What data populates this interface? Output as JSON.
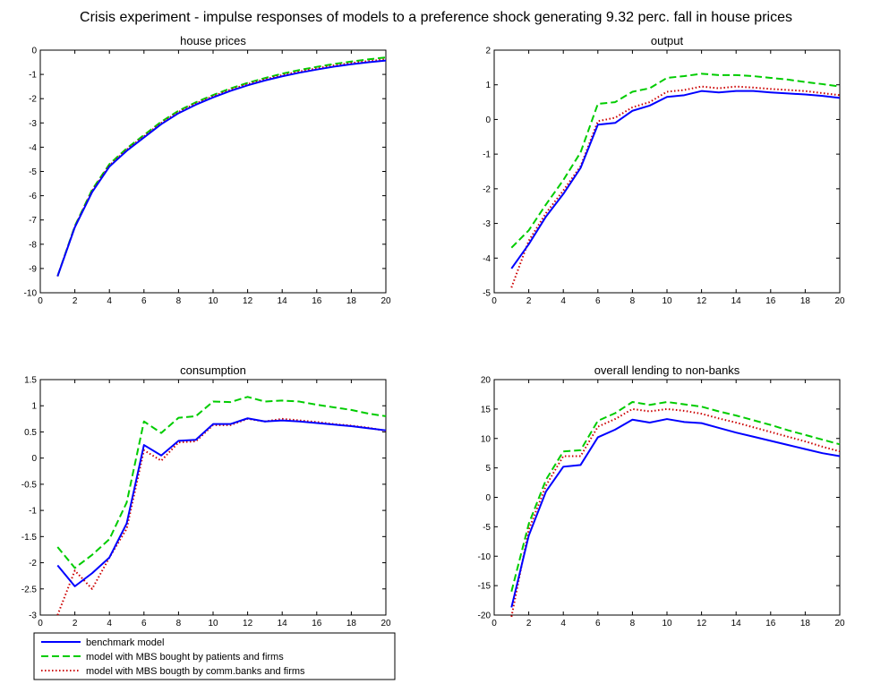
{
  "figure": {
    "title": "Crisis experiment - impulse responses of models to a preference shock generating 9.32 perc. fall in house prices"
  },
  "legend": {
    "placement": "below-bottom-left",
    "entries": [
      {
        "label": "benchmark model",
        "color": "#0000ff",
        "style": "solid"
      },
      {
        "label": "model with MBS bought by patients and firms",
        "color": "#00cc00",
        "style": "dashed"
      },
      {
        "label": "model with MBS bougth by comm.banks and firms",
        "color": "#cc0000",
        "style": "dotted"
      }
    ]
  },
  "chart_data": [
    {
      "type": "line",
      "title": "house prices",
      "xlabel": "",
      "ylabel": "",
      "xlim": [
        0,
        20
      ],
      "ylim": [
        -10,
        0
      ],
      "xticks": [
        0,
        2,
        4,
        6,
        8,
        10,
        12,
        14,
        16,
        18,
        20
      ],
      "yticks": [
        -10,
        -9,
        -8,
        -7,
        -6,
        -5,
        -4,
        -3,
        -2,
        -1,
        0
      ],
      "x": [
        1,
        2,
        3,
        4,
        5,
        6,
        7,
        8,
        9,
        10,
        11,
        12,
        13,
        14,
        15,
        16,
        17,
        18,
        19,
        20
      ],
      "series": [
        {
          "name": "benchmark model",
          "values": [
            -9.32,
            -7.3,
            -5.85,
            -4.8,
            -4.15,
            -3.6,
            -3.05,
            -2.6,
            -2.25,
            -1.95,
            -1.68,
            -1.45,
            -1.25,
            -1.08,
            -0.93,
            -0.8,
            -0.68,
            -0.58,
            -0.5,
            -0.43
          ]
        },
        {
          "name": "model with MBS bought by patients and firms",
          "values": [
            -9.32,
            -7.25,
            -5.75,
            -4.7,
            -4.05,
            -3.5,
            -2.95,
            -2.5,
            -2.15,
            -1.85,
            -1.58,
            -1.35,
            -1.15,
            -0.97,
            -0.82,
            -0.69,
            -0.57,
            -0.47,
            -0.38,
            -0.3
          ]
        },
        {
          "name": "model with MBS bougth by comm.banks and firms",
          "values": [
            -9.32,
            -7.28,
            -5.8,
            -4.75,
            -4.1,
            -3.55,
            -3.0,
            -2.55,
            -2.2,
            -1.9,
            -1.63,
            -1.4,
            -1.2,
            -1.03,
            -0.88,
            -0.75,
            -0.63,
            -0.53,
            -0.45,
            -0.38
          ]
        }
      ]
    },
    {
      "type": "line",
      "title": "output",
      "xlabel": "",
      "ylabel": "",
      "xlim": [
        0,
        20
      ],
      "ylim": [
        -5,
        2
      ],
      "xticks": [
        0,
        2,
        4,
        6,
        8,
        10,
        12,
        14,
        16,
        18,
        20
      ],
      "yticks": [
        -5,
        -4,
        -3,
        -2,
        -1,
        0,
        1,
        2
      ],
      "x": [
        1,
        2,
        3,
        4,
        5,
        6,
        7,
        8,
        9,
        10,
        11,
        12,
        13,
        14,
        15,
        16,
        17,
        18,
        19,
        20
      ],
      "series": [
        {
          "name": "benchmark model",
          "values": [
            -4.3,
            -3.6,
            -2.8,
            -2.15,
            -1.4,
            -0.15,
            -0.1,
            0.25,
            0.4,
            0.65,
            0.7,
            0.82,
            0.78,
            0.82,
            0.82,
            0.78,
            0.75,
            0.72,
            0.68,
            0.62
          ]
        },
        {
          "name": "model with MBS bought by patients and firms",
          "values": [
            -3.7,
            -3.2,
            -2.45,
            -1.75,
            -0.95,
            0.45,
            0.5,
            0.8,
            0.9,
            1.2,
            1.25,
            1.32,
            1.28,
            1.28,
            1.25,
            1.2,
            1.15,
            1.08,
            1.02,
            0.95
          ]
        },
        {
          "name": "model with MBS bougth by comm.banks and firms",
          "values": [
            -4.85,
            -3.5,
            -2.7,
            -2.05,
            -1.35,
            -0.05,
            0.05,
            0.35,
            0.5,
            0.8,
            0.85,
            0.95,
            0.9,
            0.95,
            0.92,
            0.88,
            0.85,
            0.82,
            0.76,
            0.7
          ]
        }
      ]
    },
    {
      "type": "line",
      "title": "consumption",
      "xlabel": "",
      "ylabel": "",
      "xlim": [
        0,
        20
      ],
      "ylim": [
        -3,
        1.5
      ],
      "xticks": [
        0,
        2,
        4,
        6,
        8,
        10,
        12,
        14,
        16,
        18,
        20
      ],
      "yticks": [
        -3,
        -2.5,
        -2,
        -1.5,
        -1,
        -0.5,
        0,
        0.5,
        1,
        1.5
      ],
      "x": [
        1,
        2,
        3,
        4,
        5,
        6,
        7,
        8,
        9,
        10,
        11,
        12,
        13,
        14,
        15,
        16,
        17,
        18,
        19,
        20
      ],
      "series": [
        {
          "name": "benchmark model",
          "values": [
            -2.05,
            -2.45,
            -2.2,
            -1.9,
            -1.25,
            0.25,
            0.05,
            0.33,
            0.35,
            0.65,
            0.65,
            0.76,
            0.7,
            0.72,
            0.7,
            0.67,
            0.64,
            0.61,
            0.57,
            0.53
          ]
        },
        {
          "name": "model with MBS bought by patients and firms",
          "values": [
            -1.7,
            -2.1,
            -1.85,
            -1.55,
            -0.85,
            0.7,
            0.48,
            0.77,
            0.8,
            1.08,
            1.07,
            1.17,
            1.08,
            1.1,
            1.08,
            1.02,
            0.97,
            0.92,
            0.85,
            0.8
          ]
        },
        {
          "name": "model with MBS bougth by comm.banks and firms",
          "values": [
            -3.0,
            -2.15,
            -2.5,
            -1.9,
            -1.35,
            0.15,
            -0.05,
            0.3,
            0.32,
            0.63,
            0.63,
            0.75,
            0.7,
            0.75,
            0.72,
            0.69,
            0.65,
            0.62,
            0.58,
            0.52
          ]
        }
      ]
    },
    {
      "type": "line",
      "title": "overall lending to non-banks",
      "xlabel": "",
      "ylabel": "",
      "xlim": [
        0,
        20
      ],
      "ylim": [
        -20,
        20
      ],
      "ylim_note": "",
      "xticks": [
        0,
        2,
        4,
        6,
        8,
        10,
        12,
        14,
        16,
        18,
        20
      ],
      "yticks": [
        -20,
        -15,
        -10,
        -5,
        0,
        5,
        10,
        15,
        20
      ],
      "x": [
        1,
        2,
        3,
        4,
        5,
        6,
        7,
        8,
        9,
        10,
        11,
        12,
        13,
        14,
        15,
        16,
        17,
        18,
        19,
        20
      ],
      "series": [
        {
          "name": "benchmark model",
          "values": [
            -18.7,
            -6.5,
            1.0,
            5.2,
            5.5,
            10.2,
            11.5,
            13.2,
            12.7,
            13.3,
            12.8,
            12.6,
            11.8,
            11.0,
            10.3,
            9.6,
            8.9,
            8.2,
            7.5,
            7.0
          ]
        },
        {
          "name": "model with MBS bought by patients and firms",
          "values": [
            -16.0,
            -4.5,
            3.0,
            7.8,
            8.0,
            13.0,
            14.3,
            16.2,
            15.7,
            16.2,
            15.8,
            15.4,
            14.6,
            13.9,
            13.1,
            12.3,
            11.4,
            10.6,
            9.8,
            9.0
          ]
        },
        {
          "name": "model with MBS bougth by comm.banks and firms",
          "values": [
            -20.3,
            -5.5,
            2.0,
            7.0,
            7.0,
            12.0,
            13.3,
            15.0,
            14.6,
            15.0,
            14.7,
            14.2,
            13.4,
            12.7,
            11.9,
            11.1,
            10.3,
            9.5,
            8.6,
            7.8
          ]
        }
      ]
    }
  ]
}
